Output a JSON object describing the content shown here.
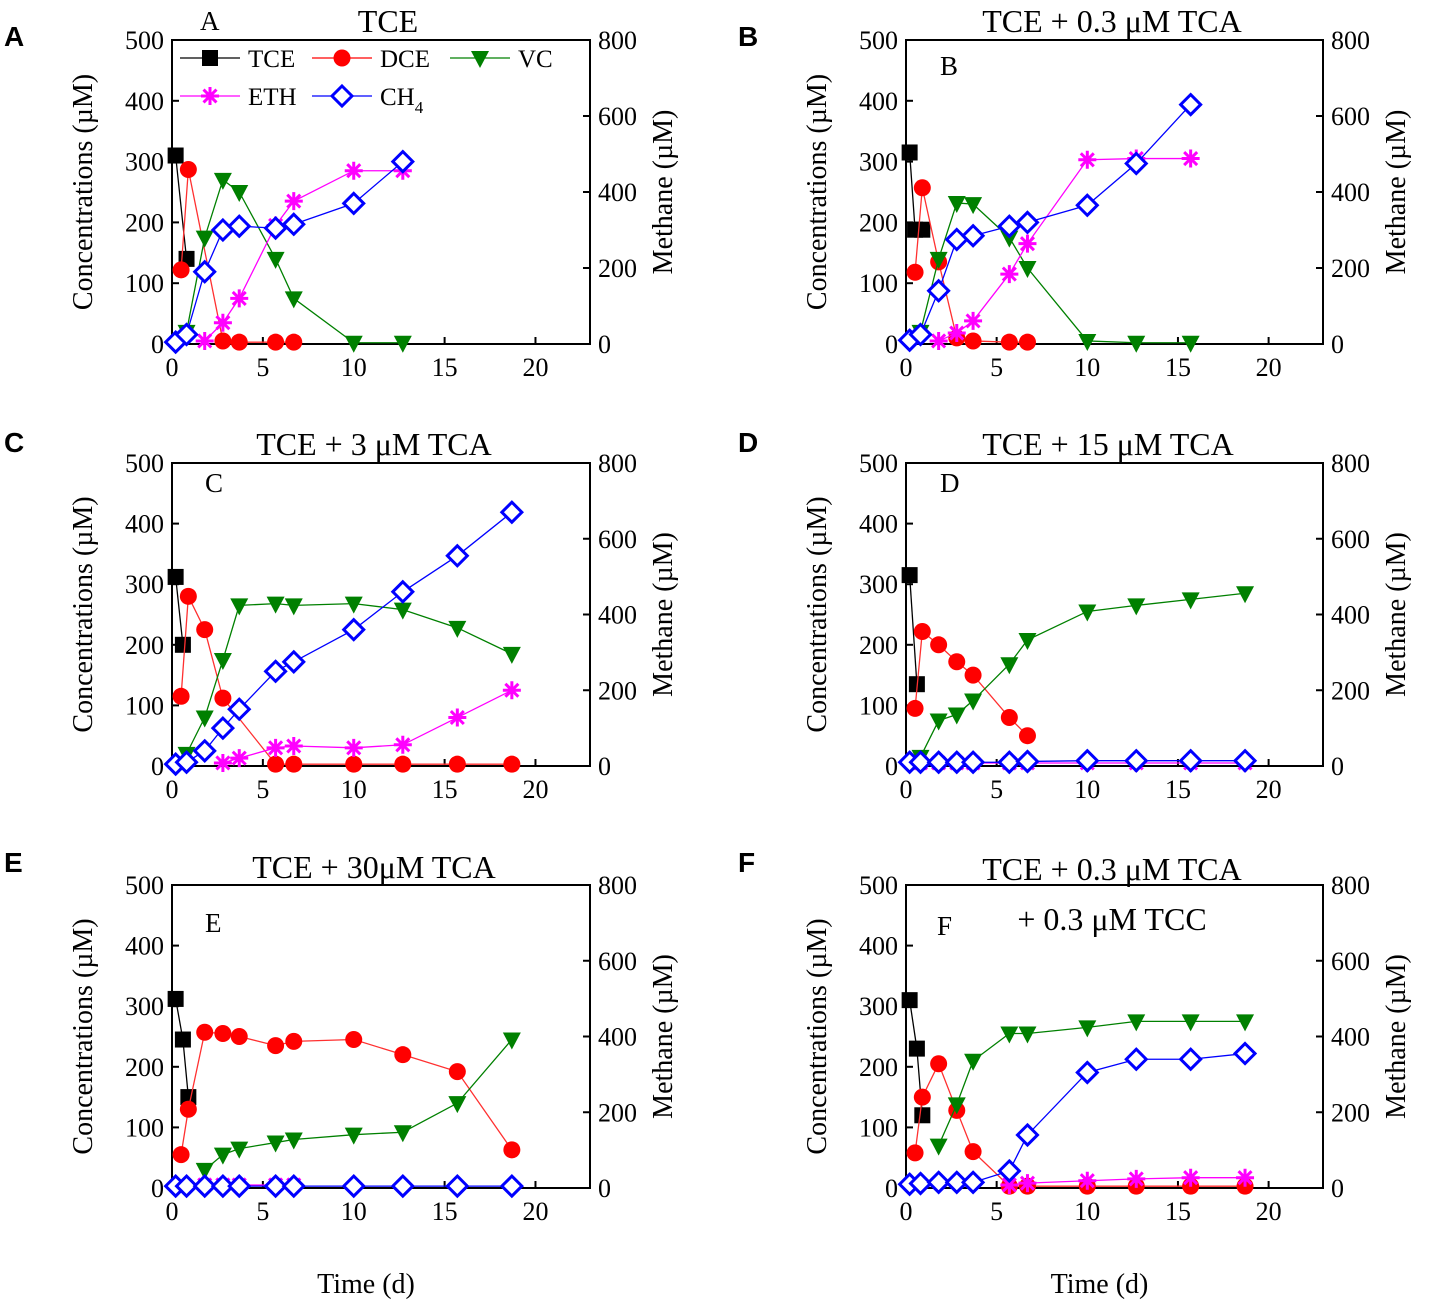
{
  "figure": {
    "x_axis_title": "Time (d)",
    "left_axis_title": "Concentrations (µM)",
    "right_axis_title": "Methane (µM)",
    "x_ticks": [
      "0",
      "5",
      "10",
      "15",
      "20"
    ],
    "y_ticks": [
      "0",
      "100",
      "200",
      "300",
      "400",
      "500"
    ],
    "y2_ticks": [
      "0",
      "200",
      "400",
      "600",
      "800"
    ]
  },
  "legend": {
    "entries": [
      {
        "name": "TCE",
        "marker": "square",
        "color": "#000000"
      },
      {
        "name": "DCE",
        "marker": "circle",
        "color": "#ff0000"
      },
      {
        "name": "VC",
        "marker": "triangle-down",
        "color": "#008000"
      },
      {
        "name": "ETH",
        "marker": "asterisk",
        "color": "#ff00ff"
      },
      {
        "name": "CH4",
        "marker": "diamond-open",
        "color": "#0000ff"
      }
    ]
  },
  "series_styles": {
    "TCE": {
      "color": "#000000",
      "marker": "square",
      "line": "#000000"
    },
    "DCE": {
      "color": "#ff0000",
      "marker": "circle",
      "line": "#ff3030"
    },
    "VC": {
      "color": "#008000",
      "marker": "triangle-down",
      "line": "#008000"
    },
    "ETH": {
      "color": "#ff00ff",
      "marker": "asterisk",
      "line": "#ff00ff"
    },
    "CH4": {
      "color": "#0000ff",
      "marker": "diamond-open",
      "line": "#0000ff"
    }
  },
  "chart_data": [
    {
      "type": "line",
      "panel": "A",
      "title": "TCE",
      "inner_label": "A",
      "xlabel": "",
      "ylabel": "Concentrations (µM)",
      "y2label": "Methane (µM)",
      "xlim": [
        0,
        23
      ],
      "ylim": [
        0,
        500
      ],
      "y2lim": [
        0,
        800
      ],
      "series": [
        {
          "name": "TCE",
          "axis": "left",
          "x": [
            0.2,
            0.8
          ],
          "y": [
            310,
            140
          ]
        },
        {
          "name": "DCE",
          "axis": "left",
          "x": [
            0.5,
            0.9,
            2.8,
            3.7,
            5.7,
            6.7
          ],
          "y": [
            122,
            287,
            5,
            3,
            3,
            3
          ]
        },
        {
          "name": "VC",
          "axis": "left",
          "x": [
            0.8,
            1.8,
            2.8,
            3.7,
            5.7,
            6.7,
            10,
            12.7
          ],
          "y": [
            20,
            175,
            270,
            250,
            140,
            75,
            2,
            2
          ]
        },
        {
          "name": "ETH",
          "axis": "left",
          "x": [
            1.8,
            2.8,
            3.7,
            5.7,
            6.7,
            10,
            12.7
          ],
          "y": [
            5,
            35,
            75,
            195,
            235,
            285,
            285
          ]
        },
        {
          "name": "CH4",
          "axis": "right",
          "x": [
            0.2,
            0.8,
            1.8,
            2.8,
            3.7,
            5.7,
            6.7,
            10,
            12.7
          ],
          "y": [
            5,
            25,
            190,
            300,
            310,
            305,
            315,
            370,
            480
          ]
        }
      ]
    },
    {
      "type": "line",
      "panel": "B",
      "title": "TCE + 0.3 μM TCA",
      "inner_label": "B",
      "xlabel": "",
      "ylabel": "Concentrations (µM)",
      "y2label": "Methane (µM)",
      "xlim": [
        0,
        23
      ],
      "ylim": [
        0,
        500
      ],
      "y2lim": [
        0,
        800
      ],
      "series": [
        {
          "name": "TCE",
          "axis": "left",
          "x": [
            0.2,
            0.5,
            0.9
          ],
          "y": [
            315,
            188,
            188
          ]
        },
        {
          "name": "DCE",
          "axis": "left",
          "x": [
            0.5,
            0.9,
            1.8,
            2.8,
            3.7,
            5.7,
            6.7
          ],
          "y": [
            118,
            257,
            135,
            10,
            5,
            3,
            3
          ]
        },
        {
          "name": "VC",
          "axis": "left",
          "x": [
            0.8,
            1.8,
            2.8,
            3.7,
            5.7,
            6.7,
            10,
            12.7,
            15.7
          ],
          "y": [
            20,
            140,
            232,
            230,
            175,
            125,
            5,
            2,
            2
          ]
        },
        {
          "name": "ETH",
          "axis": "left",
          "x": [
            1.8,
            2.8,
            3.7,
            5.7,
            6.7,
            10,
            12.7,
            15.7
          ],
          "y": [
            5,
            18,
            38,
            115,
            165,
            303,
            305,
            305
          ]
        },
        {
          "name": "CH4",
          "axis": "right",
          "x": [
            0.2,
            0.8,
            1.8,
            2.8,
            3.7,
            5.7,
            6.7,
            10,
            12.7,
            15.7
          ],
          "y": [
            10,
            25,
            140,
            275,
            285,
            310,
            320,
            365,
            475,
            630
          ]
        }
      ]
    },
    {
      "type": "line",
      "panel": "C",
      "title": "TCE + 3 μM TCA",
      "inner_label": "C",
      "xlabel": "",
      "ylabel": "Concentrations (µM)",
      "y2label": "Methane (µM)",
      "xlim": [
        0,
        23
      ],
      "ylim": [
        0,
        500
      ],
      "y2lim": [
        0,
        800
      ],
      "series": [
        {
          "name": "TCE",
          "axis": "left",
          "x": [
            0.2,
            0.6
          ],
          "y": [
            312,
            200
          ]
        },
        {
          "name": "DCE",
          "axis": "left",
          "x": [
            0.5,
            0.9,
            1.8,
            2.8,
            5.7,
            6.7,
            10,
            12.7,
            15.7,
            18.7
          ],
          "y": [
            115,
            280,
            225,
            112,
            3,
            3,
            3,
            3,
            3,
            3
          ]
        },
        {
          "name": "VC",
          "axis": "left",
          "x": [
            0.8,
            1.8,
            2.8,
            3.7,
            5.7,
            6.7,
            10,
            12.7,
            15.7,
            18.7
          ],
          "y": [
            20,
            80,
            175,
            265,
            268,
            265,
            268,
            258,
            228,
            185
          ]
        },
        {
          "name": "ETH",
          "axis": "left",
          "x": [
            2.8,
            3.7,
            5.7,
            6.7,
            10,
            12.7,
            15.7,
            18.7
          ],
          "y": [
            5,
            13,
            30,
            33,
            30,
            35,
            80,
            125
          ]
        },
        {
          "name": "CH4",
          "axis": "right",
          "x": [
            0.2,
            0.8,
            1.8,
            2.8,
            3.7,
            5.7,
            6.7,
            10,
            12.7,
            15.7,
            18.7
          ],
          "y": [
            5,
            10,
            40,
            100,
            150,
            250,
            275,
            360,
            460,
            555,
            670
          ]
        }
      ]
    },
    {
      "type": "line",
      "panel": "D",
      "title": "TCE + 15 μM TCA",
      "inner_label": "D",
      "xlabel": "",
      "ylabel": "Concentrations (µM)",
      "y2label": "Methane (µM)",
      "xlim": [
        0,
        23
      ],
      "ylim": [
        0,
        500
      ],
      "y2lim": [
        0,
        800
      ],
      "series": [
        {
          "name": "TCE",
          "axis": "left",
          "x": [
            0.2,
            0.6
          ],
          "y": [
            315,
            135
          ]
        },
        {
          "name": "DCE",
          "axis": "left",
          "x": [
            0.5,
            0.9,
            1.8,
            2.8,
            3.7,
            5.7,
            6.7
          ],
          "y": [
            95,
            222,
            200,
            172,
            150,
            80,
            50
          ]
        },
        {
          "name": "VC",
          "axis": "left",
          "x": [
            0.8,
            1.8,
            2.8,
            3.7,
            5.7,
            6.7,
            10,
            12.7,
            15.7,
            18.7
          ],
          "y": [
            15,
            75,
            85,
            108,
            168,
            208,
            255,
            265,
            275,
            285
          ]
        },
        {
          "name": "ETH",
          "axis": "left",
          "x": [
            0.8,
            1.8,
            2.8,
            3.7,
            5.7,
            6.7,
            10,
            12.7,
            15.7,
            18.7
          ],
          "y": [
            5,
            5,
            5,
            5,
            5,
            5,
            5,
            5,
            5,
            5
          ]
        },
        {
          "name": "CH4",
          "axis": "right",
          "x": [
            0.2,
            0.8,
            1.8,
            2.8,
            3.7,
            5.7,
            6.7,
            10,
            12.7,
            15.7,
            18.7
          ],
          "y": [
            10,
            10,
            10,
            10,
            10,
            10,
            12,
            14,
            14,
            14,
            14
          ]
        }
      ]
    },
    {
      "type": "line",
      "panel": "E",
      "title": "TCE + 30μM TCA",
      "inner_label": "E",
      "xlabel": "Time (d)",
      "ylabel": "Concentrations (µM)",
      "y2label": "Methane (µM)",
      "xlim": [
        0,
        23
      ],
      "ylim": [
        0,
        500
      ],
      "y2lim": [
        0,
        800
      ],
      "series": [
        {
          "name": "TCE",
          "axis": "left",
          "x": [
            0.2,
            0.6,
            0.9
          ],
          "y": [
            312,
            245,
            150
          ]
        },
        {
          "name": "DCE",
          "axis": "left",
          "x": [
            0.5,
            0.9,
            1.8,
            2.8,
            3.7,
            5.7,
            6.7,
            10,
            12.7,
            15.7,
            18.7
          ],
          "y": [
            55,
            130,
            257,
            255,
            250,
            235,
            242,
            245,
            220,
            192,
            63
          ]
        },
        {
          "name": "VC",
          "axis": "left",
          "x": [
            1.8,
            2.8,
            3.7,
            5.7,
            6.7,
            10,
            12.7,
            15.7,
            18.7
          ],
          "y": [
            30,
            55,
            65,
            75,
            80,
            88,
            92,
            140,
            245
          ]
        },
        {
          "name": "ETH",
          "axis": "left",
          "x": [
            1.8,
            2.8,
            3.7,
            5.7,
            6.7
          ],
          "y": [
            5,
            5,
            5,
            5,
            5
          ]
        },
        {
          "name": "CH4",
          "axis": "right",
          "x": [
            0.2,
            0.8,
            1.8,
            2.8,
            3.7,
            5.7,
            6.7,
            10,
            12.7,
            15.7,
            18.7
          ],
          "y": [
            5,
            5,
            5,
            5,
            5,
            5,
            5,
            5,
            5,
            5,
            5
          ]
        }
      ]
    },
    {
      "type": "line",
      "panel": "F",
      "title": "TCE + 0.3 μM TCA",
      "title_line2": "+ 0.3 μM TCC",
      "inner_label": "F",
      "xlabel": "Time (d)",
      "ylabel": "Concentrations (µM)",
      "y2label": "Methane (µM)",
      "xlim": [
        0,
        23
      ],
      "ylim": [
        0,
        500
      ],
      "y2lim": [
        0,
        800
      ],
      "series": [
        {
          "name": "TCE",
          "axis": "left",
          "x": [
            0.2,
            0.6,
            0.9
          ],
          "y": [
            310,
            230,
            120
          ]
        },
        {
          "name": "DCE",
          "axis": "left",
          "x": [
            0.5,
            0.9,
            1.8,
            2.8,
            3.7,
            5.7,
            6.7,
            10,
            12.7,
            15.7,
            18.7
          ],
          "y": [
            58,
            150,
            205,
            128,
            60,
            3,
            3,
            3,
            3,
            3,
            3
          ]
        },
        {
          "name": "VC",
          "axis": "left",
          "x": [
            1.8,
            2.8,
            3.7,
            5.7,
            6.7,
            10,
            12.7,
            15.7,
            18.7
          ],
          "y": [
            70,
            138,
            210,
            255,
            255,
            265,
            275,
            275,
            275
          ]
        },
        {
          "name": "ETH",
          "axis": "left",
          "x": [
            5.7,
            6.7,
            10,
            12.7,
            15.7,
            18.7
          ],
          "y": [
            5,
            8,
            12,
            15,
            17,
            17
          ]
        },
        {
          "name": "CH4",
          "axis": "right",
          "x": [
            0.2,
            0.8,
            1.8,
            2.8,
            3.7,
            5.7,
            6.7,
            10,
            12.7,
            15.7,
            18.7
          ],
          "y": [
            10,
            12,
            15,
            15,
            15,
            45,
            140,
            305,
            340,
            340,
            355
          ]
        }
      ]
    }
  ]
}
